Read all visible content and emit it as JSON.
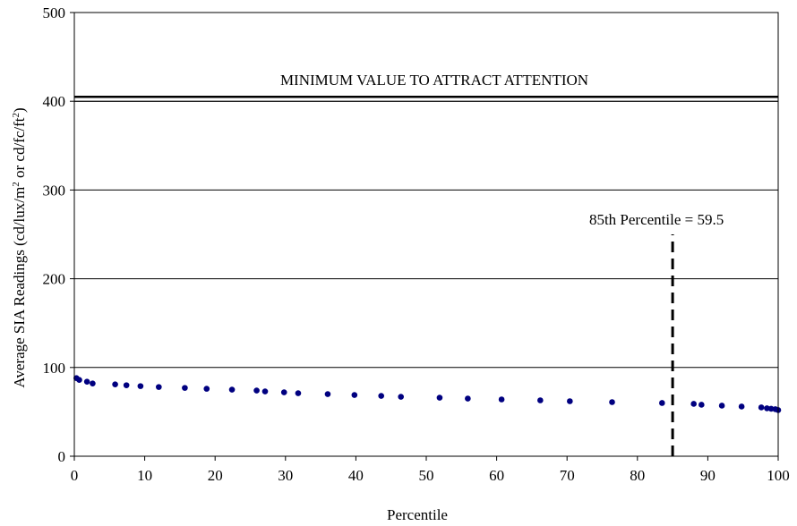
{
  "chart_data": {
    "type": "scatter",
    "xlabel": "Percentile",
    "ylabel": "Average SIA Readings (cd/lux/m² or cd/fc/ft²)",
    "xlim": [
      0,
      100
    ],
    "ylim": [
      0,
      500
    ],
    "x_ticks": [
      0,
      10,
      20,
      30,
      40,
      50,
      60,
      70,
      80,
      90,
      100
    ],
    "y_ticks": [
      0,
      100,
      200,
      300,
      400,
      500
    ],
    "grid": "horizontal",
    "marker_color": "#000080",
    "series": [
      {
        "points": [
          [
            0.3,
            88
          ],
          [
            0.7,
            86
          ],
          [
            1.8,
            84
          ],
          [
            2.6,
            82
          ],
          [
            5.8,
            81
          ],
          [
            7.4,
            80
          ],
          [
            9.4,
            79
          ],
          [
            12.0,
            78
          ],
          [
            15.7,
            77
          ],
          [
            18.8,
            76
          ],
          [
            22.4,
            75
          ],
          [
            25.9,
            74
          ],
          [
            27.1,
            73
          ],
          [
            29.8,
            72
          ],
          [
            31.8,
            71
          ],
          [
            36.0,
            70
          ],
          [
            39.8,
            69
          ],
          [
            43.6,
            68
          ],
          [
            46.4,
            67
          ],
          [
            51.9,
            66
          ],
          [
            55.9,
            65
          ],
          [
            60.7,
            64
          ],
          [
            66.2,
            63
          ],
          [
            70.4,
            62
          ],
          [
            76.4,
            61
          ],
          [
            83.5,
            60
          ],
          [
            88.0,
            59
          ],
          [
            89.1,
            58
          ],
          [
            92.0,
            57
          ],
          [
            94.8,
            56
          ],
          [
            97.6,
            55
          ],
          [
            98.4,
            54
          ],
          [
            99.0,
            53.5
          ],
          [
            99.6,
            53
          ],
          [
            100.0,
            52
          ]
        ]
      }
    ],
    "reference_line": {
      "y": 405,
      "label": "MINIMUM VALUE TO ATTRACT ATTENTION"
    },
    "percentile_line": {
      "x": 85,
      "y_from": 0,
      "y_to": 250,
      "label": "85th Percentile = 59.5"
    }
  }
}
